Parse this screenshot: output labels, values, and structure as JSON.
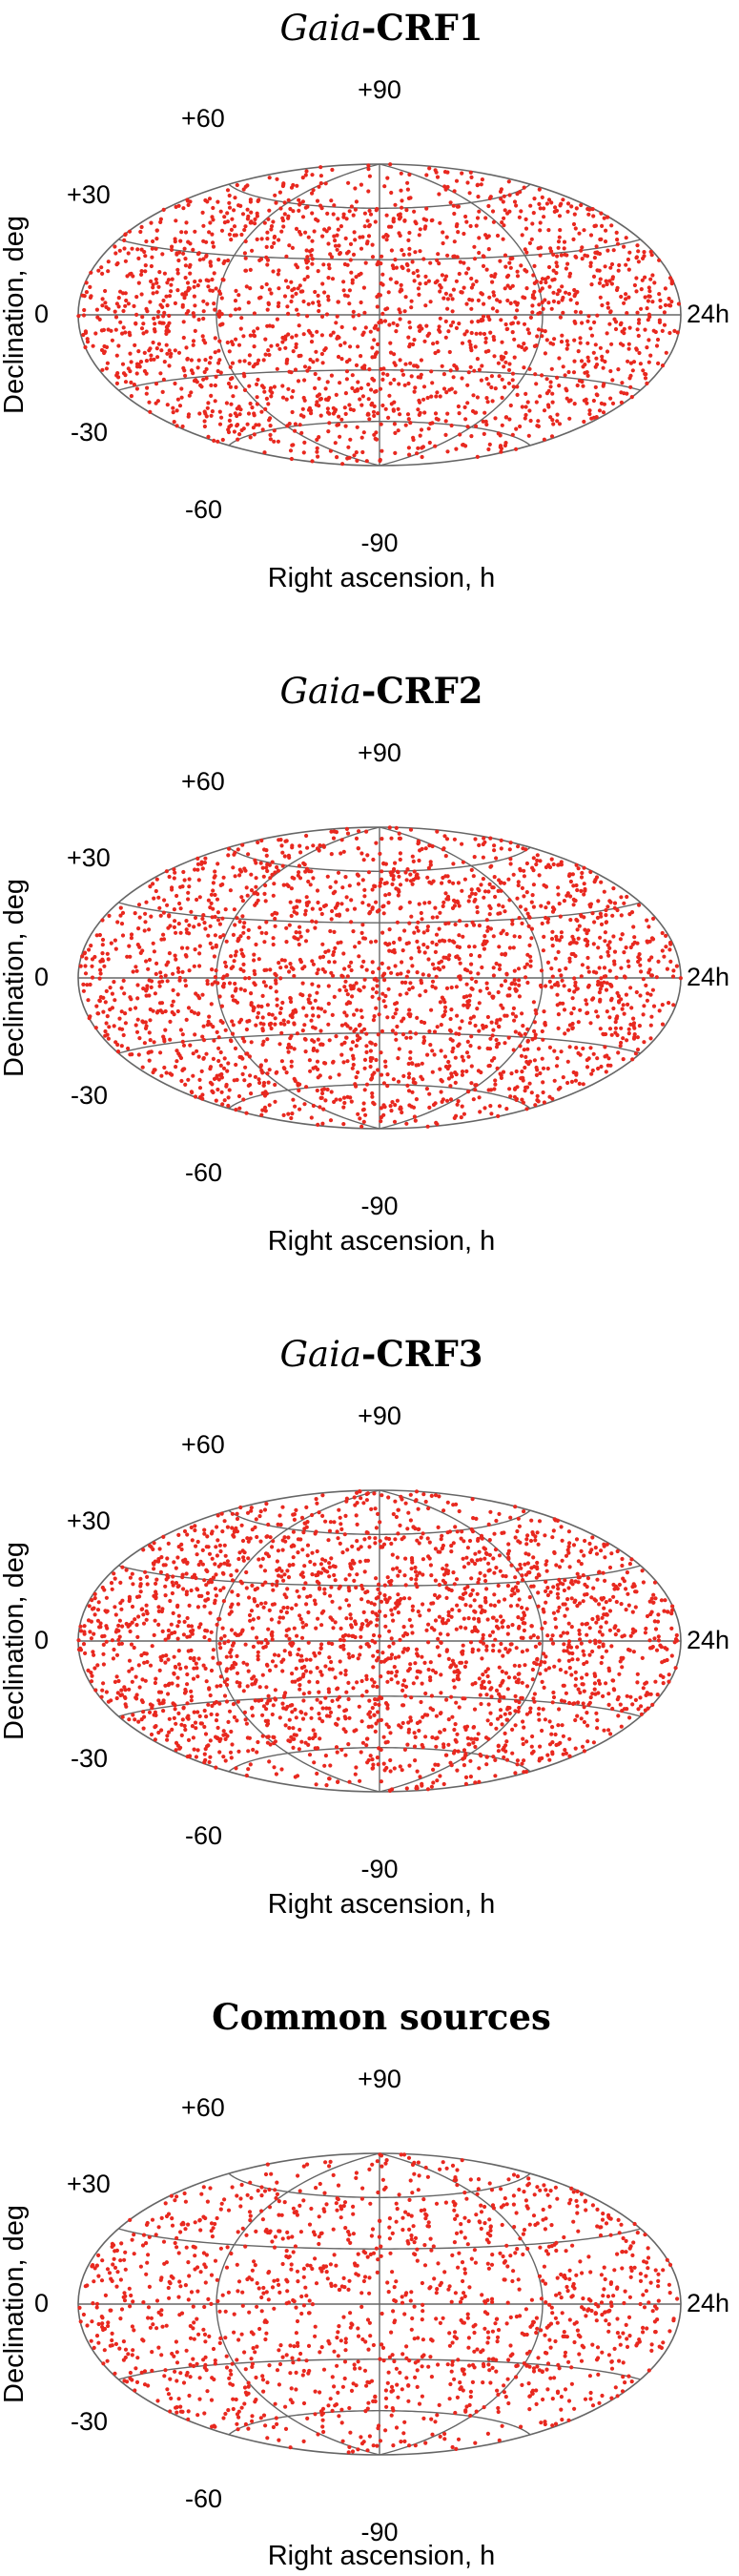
{
  "colors": {
    "points": "#e8281f",
    "grid": "#666666",
    "text": "#000000"
  },
  "chart_data": [
    {
      "type": "scatter",
      "projection": "Hammer-Aitoff",
      "title": {
        "italic": "Gaia",
        "bold": "-CRF1"
      },
      "xlabel": "Right ascension, h",
      "ylabel": "Declination, deg",
      "ra_label": "24h",
      "dec_ticks": [
        "+90",
        "+60",
        "+30",
        "0",
        "-30",
        "-60",
        "-90"
      ],
      "dec_ticks_values": [
        90,
        60,
        30,
        0,
        -30,
        -60,
        -90
      ],
      "grid": true,
      "points_in_figure": 2100,
      "seed": 11,
      "points_note": "dense uniform sky distribution of red dots; sparse north of +60 and south of -60"
    },
    {
      "type": "scatter",
      "projection": "Hammer-Aitoff",
      "title": {
        "italic": "Gaia",
        "bold": "-CRF2"
      },
      "xlabel": "Right ascension, h",
      "ylabel": "Declination, deg",
      "ra_label": "24h",
      "dec_ticks": [
        "+90",
        "+60",
        "+30",
        "0",
        "-30",
        "-60",
        "-90"
      ],
      "dec_ticks_values": [
        90,
        60,
        30,
        0,
        -30,
        -60,
        -90
      ],
      "grid": true,
      "points_in_figure": 2300,
      "seed": 23,
      "points_note": "dense uniform sky distribution of red dots"
    },
    {
      "type": "scatter",
      "projection": "Hammer-Aitoff",
      "title": {
        "italic": "Gaia",
        "bold": "-CRF3"
      },
      "xlabel": "Right ascension, h",
      "ylabel": "Declination, deg",
      "ra_label": "24h",
      "dec_ticks": [
        "+90",
        "+60",
        "+30",
        "0",
        "-30",
        "-60",
        "-90"
      ],
      "dec_ticks_values": [
        90,
        60,
        30,
        0,
        -30,
        -60,
        -90
      ],
      "grid": true,
      "points_in_figure": 2500,
      "seed": 37,
      "points_note": "densest distribution of red dots"
    },
    {
      "type": "scatter",
      "projection": "Hammer-Aitoff",
      "title": {
        "italic": "",
        "bold": "Common sources"
      },
      "xlabel": "Right ascension, h",
      "ylabel": "Declination, deg",
      "ra_label": "24h",
      "dec_ticks": [
        "+90",
        "+60",
        "+30",
        "0",
        "-30",
        "-60",
        "-90"
      ],
      "dec_ticks_values": [
        90,
        60,
        30,
        0,
        -30,
        -60,
        -90
      ],
      "grid": true,
      "points_in_figure": 1500,
      "seed": 53,
      "points_note": "sparser distribution of red dots"
    }
  ]
}
